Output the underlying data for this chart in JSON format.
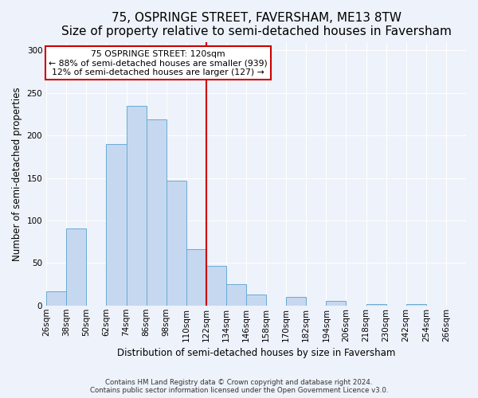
{
  "title": "75, OSPRINGE STREET, FAVERSHAM, ME13 8TW",
  "subtitle": "Size of property relative to semi-detached houses in Faversham",
  "xlabel": "Distribution of semi-detached houses by size in Faversham",
  "ylabel": "Number of semi-detached properties",
  "bin_labels": [
    "26sqm",
    "38sqm",
    "50sqm",
    "62sqm",
    "74sqm",
    "86sqm",
    "98sqm",
    "110sqm",
    "122sqm",
    "134sqm",
    "146sqm",
    "158sqm",
    "170sqm",
    "182sqm",
    "194sqm",
    "206sqm",
    "218sqm",
    "230sqm",
    "242sqm",
    "254sqm",
    "266sqm"
  ],
  "bin_left_edges": [
    26,
    38,
    50,
    62,
    74,
    86,
    98,
    110,
    122,
    134,
    146,
    158,
    170,
    182,
    194,
    206,
    218,
    230,
    242,
    254
  ],
  "bar_heights": [
    17,
    91,
    0,
    190,
    235,
    219,
    147,
    66,
    47,
    25,
    13,
    0,
    10,
    0,
    5,
    0,
    2,
    0,
    2,
    0
  ],
  "bar_color": "#c5d8f0",
  "bar_edge_color": "#6aaad4",
  "vline_x": 122,
  "vline_color": "#cc0000",
  "ylim": [
    0,
    310
  ],
  "yticks": [
    0,
    50,
    100,
    150,
    200,
    250,
    300
  ],
  "xlim_left": 26,
  "xlim_right": 278,
  "bin_width": 12,
  "annotation_title": "75 OSPRINGE STREET: 120sqm",
  "annotation_line1": "← 88% of semi-detached houses are smaller (939)",
  "annotation_line2": "12% of semi-detached houses are larger (127) →",
  "annotation_box_color": "#ffffff",
  "annotation_box_edge": "#cc0000",
  "footnote1": "Contains HM Land Registry data © Crown copyright and database right 2024.",
  "footnote2": "Contains public sector information licensed under the Open Government Licence v3.0.",
  "bg_color": "#eef2fa",
  "grid_color": "#ffffff",
  "title_fontsize": 11,
  "subtitle_fontsize": 9,
  "axis_label_fontsize": 8.5,
  "tick_fontsize": 7.5
}
